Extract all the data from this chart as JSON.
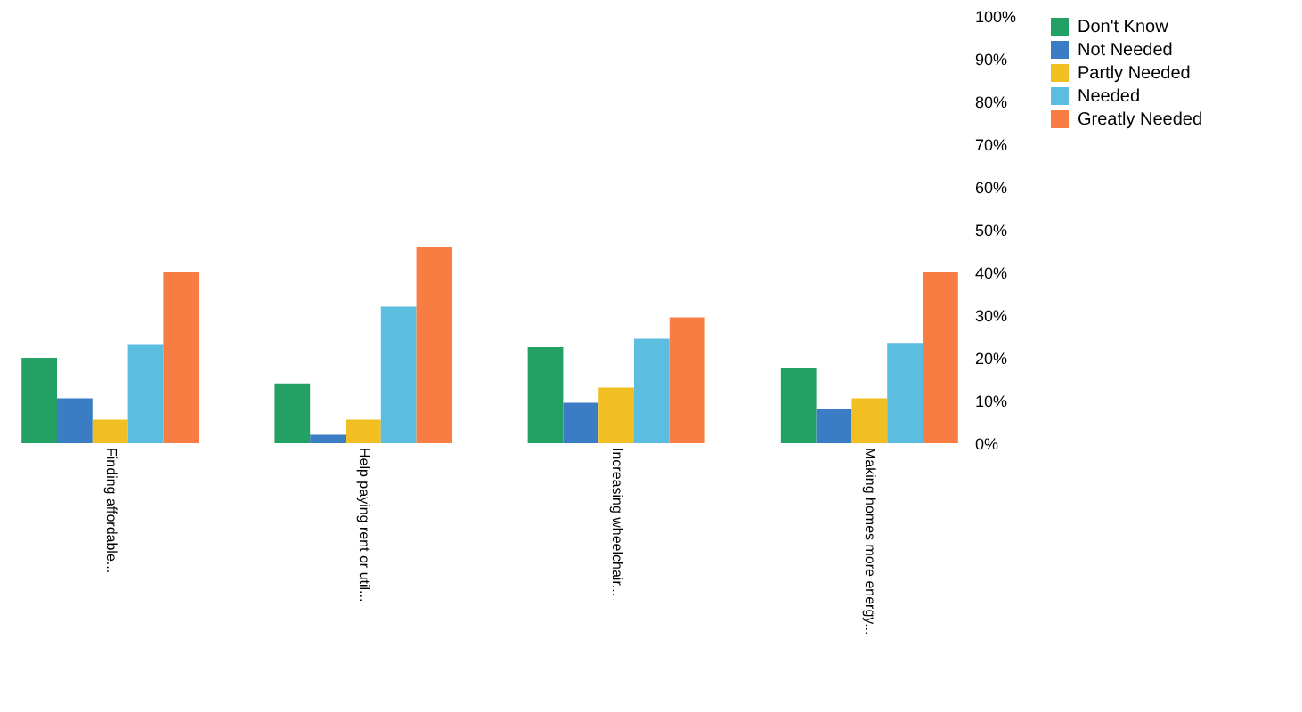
{
  "chart_data": {
    "type": "bar",
    "categories": [
      "Finding affordable...",
      "Help paying rent or util...",
      "Increasing wheelchair...",
      "Making homes more energy..."
    ],
    "series": [
      {
        "name": "Don't Know",
        "color": "#23a063",
        "values": [
          20,
          14,
          22.5,
          17.5
        ]
      },
      {
        "name": "Not Needed",
        "color": "#3a7dc4",
        "values": [
          10.5,
          2,
          9.5,
          8
        ]
      },
      {
        "name": "Partly Needed",
        "color": "#f2bf22",
        "values": [
          5.5,
          5.5,
          13,
          10.5
        ]
      },
      {
        "name": "Needed",
        "color": "#5bbde0",
        "values": [
          23,
          32,
          24.5,
          23.5
        ]
      },
      {
        "name": "Greatly Needed",
        "color": "#f77d43",
        "values": [
          40,
          46,
          29.5,
          40
        ]
      }
    ],
    "ylim": [
      0,
      100
    ],
    "yticks": [
      {
        "value": 0,
        "label": "0%"
      },
      {
        "value": 10,
        "label": "10%"
      },
      {
        "value": 20,
        "label": "20%"
      },
      {
        "value": 30,
        "label": "30%"
      },
      {
        "value": 40,
        "label": "40%"
      },
      {
        "value": 50,
        "label": "50%"
      },
      {
        "value": 60,
        "label": "60%"
      },
      {
        "value": 70,
        "label": "70%"
      },
      {
        "value": 80,
        "label": "80%"
      },
      {
        "value": 90,
        "label": "90%"
      },
      {
        "value": 100,
        "label": "100%"
      }
    ],
    "grid": false,
    "legend": "right"
  }
}
